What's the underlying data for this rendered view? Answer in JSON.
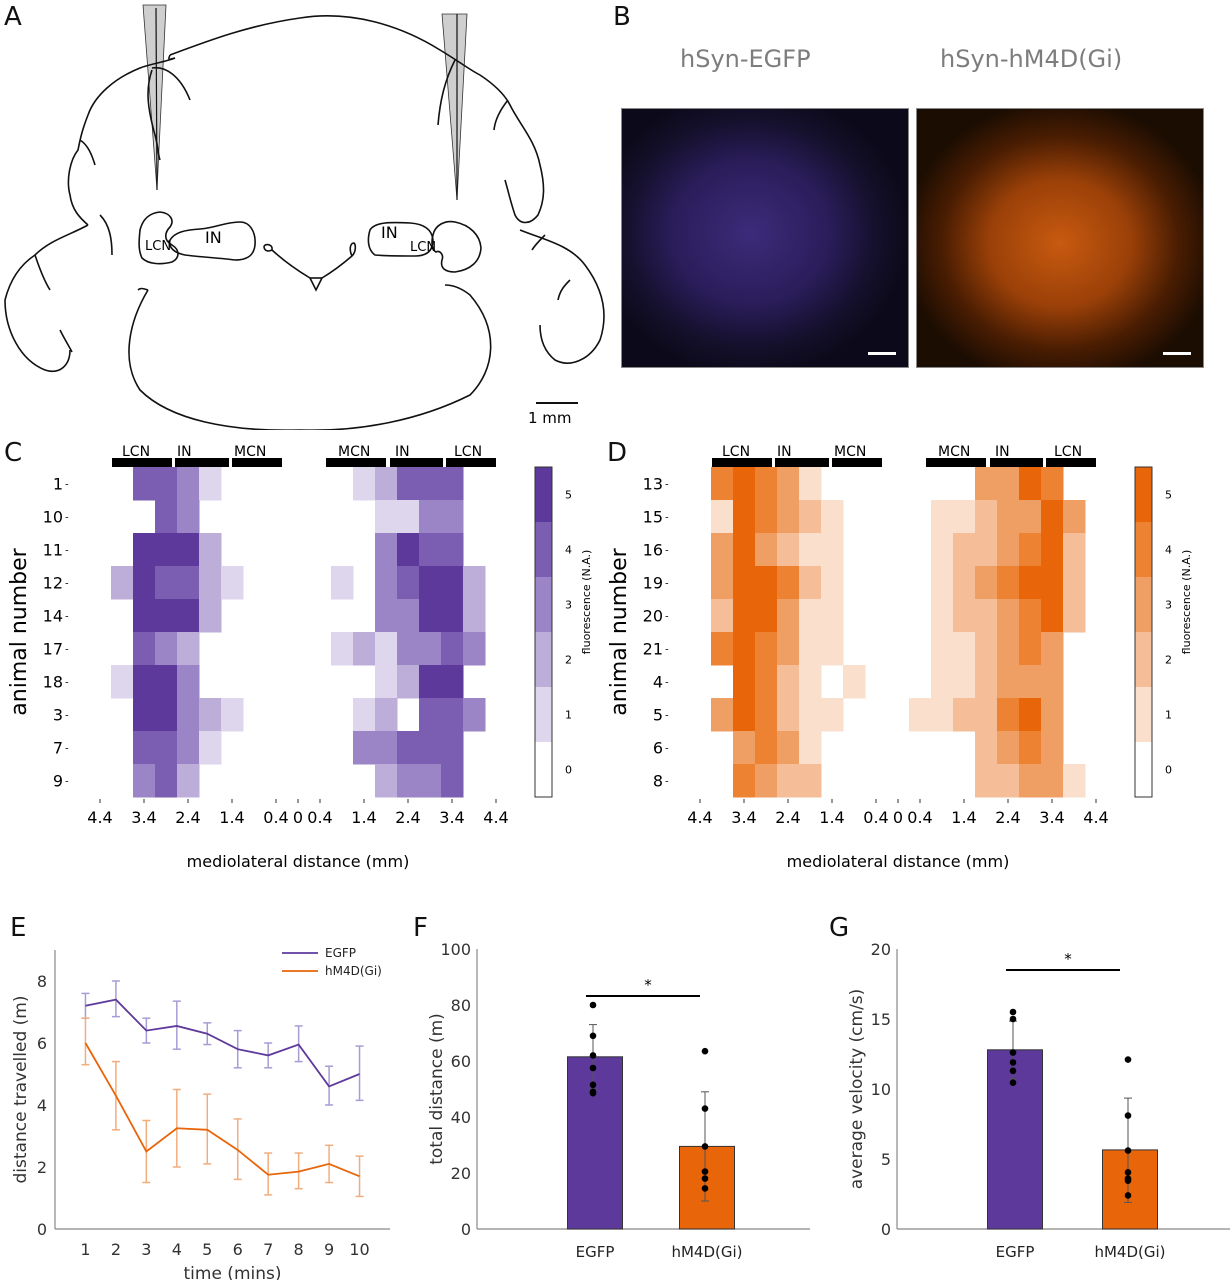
{
  "panels": {
    "A": {
      "label": "A",
      "annotations": {
        "left_lcn": "LCN",
        "left_in": "IN",
        "right_in": "IN",
        "right_lcn": "LCN"
      },
      "scale_bar": "1 mm"
    },
    "B": {
      "label": "B",
      "images": [
        {
          "title": "hSyn-EGFP",
          "tint": "#5b3fd1"
        },
        {
          "title": "hSyn-hM4D(Gi)",
          "tint": "#f06a0f"
        }
      ]
    },
    "C": {
      "label": "C"
    },
    "D": {
      "label": "D"
    },
    "E": {
      "label": "E"
    },
    "F": {
      "label": "F"
    },
    "G": {
      "label": "G"
    }
  },
  "colors": {
    "egfp": "#5e399c",
    "hm4d": "#e8650a"
  },
  "chart_data": [
    {
      "id": "C",
      "type": "heatmap",
      "title": "",
      "ylabel": "animal number",
      "xlabel": "mediolateral distance (mm)",
      "colorbar_label": "fluorescence (N.A.)",
      "colorbar_ticks": [
        "0",
        "1",
        "2",
        "3",
        "4",
        "5"
      ],
      "colormap": "purple",
      "rows": [
        "1",
        "10",
        "11",
        "12",
        "14",
        "17",
        "18",
        "3",
        "7",
        "9"
      ],
      "left": {
        "nucleus_labels": [
          "LCN",
          "IN",
          "MCN"
        ],
        "x_ticks": [
          "4.4",
          "3.4",
          "2.4",
          "1.4",
          "0.4"
        ],
        "values": [
          [
            0,
            4,
            4,
            3,
            1,
            0,
            0
          ],
          [
            0,
            0,
            4,
            3,
            0,
            0,
            0
          ],
          [
            0,
            5,
            5,
            5,
            2,
            0,
            0
          ],
          [
            2,
            5,
            4,
            4,
            2,
            1,
            0
          ],
          [
            0,
            5,
            5,
            5,
            2,
            0,
            0
          ],
          [
            0,
            4,
            3,
            2,
            0,
            0,
            0
          ],
          [
            1,
            5,
            5,
            3,
            0,
            0,
            0
          ],
          [
            0,
            5,
            5,
            3,
            2,
            1,
            0
          ],
          [
            0,
            4,
            4,
            3,
            1,
            0,
            0
          ],
          [
            0,
            3,
            4,
            2,
            0,
            0,
            0
          ]
        ]
      },
      "right": {
        "nucleus_labels": [
          "MCN",
          "IN",
          "LCN"
        ],
        "x_ticks": [
          "0",
          "0.4",
          "1.4",
          "2.4",
          "3.4",
          "4.4"
        ],
        "values": [
          [
            0,
            1,
            2,
            4,
            4,
            4,
            0
          ],
          [
            0,
            0,
            1,
            1,
            3,
            3,
            0
          ],
          [
            0,
            0,
            3,
            5,
            4,
            4,
            0
          ],
          [
            1,
            0,
            3,
            4,
            5,
            5,
            2
          ],
          [
            0,
            0,
            3,
            3,
            5,
            5,
            2
          ],
          [
            1,
            2,
            1,
            3,
            3,
            4,
            3
          ],
          [
            0,
            0,
            1,
            2,
            5,
            5,
            0
          ],
          [
            0,
            1,
            2,
            0,
            4,
            4,
            3
          ],
          [
            0,
            3,
            3,
            4,
            4,
            4,
            0
          ],
          [
            0,
            0,
            2,
            3,
            3,
            4,
            0
          ]
        ]
      }
    },
    {
      "id": "D",
      "type": "heatmap",
      "title": "",
      "ylabel": "animal number",
      "xlabel": "mediolateral distance (mm)",
      "colorbar_label": "fluorescence (N.A.)",
      "colorbar_ticks": [
        "0",
        "1",
        "2",
        "3",
        "4",
        "5"
      ],
      "colormap": "orange",
      "rows": [
        "13",
        "15",
        "16",
        "19",
        "20",
        "21",
        "4",
        "5",
        "6",
        "8"
      ],
      "left": {
        "nucleus_labels": [
          "LCN",
          "IN",
          "MCN"
        ],
        "x_ticks": [
          "4.4",
          "3.4",
          "2.4",
          "1.4",
          "0.4"
        ],
        "values": [
          [
            4,
            5,
            4,
            3,
            1,
            0,
            0
          ],
          [
            1,
            5,
            4,
            3,
            2,
            1,
            0
          ],
          [
            3,
            5,
            3,
            2,
            1,
            1,
            0
          ],
          [
            3,
            5,
            5,
            4,
            2,
            1,
            0
          ],
          [
            2,
            5,
            5,
            3,
            1,
            1,
            0
          ],
          [
            4,
            5,
            4,
            3,
            1,
            1,
            0
          ],
          [
            0,
            5,
            4,
            2,
            1,
            0,
            1
          ],
          [
            3,
            5,
            4,
            2,
            1,
            1,
            0
          ],
          [
            0,
            3,
            4,
            3,
            1,
            0,
            0
          ],
          [
            0,
            4,
            3,
            2,
            2,
            0,
            0
          ]
        ]
      },
      "right": {
        "nucleus_labels": [
          "MCN",
          "IN",
          "LCN"
        ],
        "x_ticks": [
          "0",
          "0.4",
          "1.4",
          "2.4",
          "3.4",
          "4.4"
        ],
        "values": [
          [
            0,
            0,
            0,
            3,
            3,
            5,
            4,
            0
          ],
          [
            0,
            1,
            1,
            2,
            3,
            3,
            5,
            3
          ],
          [
            0,
            1,
            2,
            2,
            3,
            4,
            5,
            2
          ],
          [
            0,
            1,
            2,
            3,
            4,
            5,
            5,
            2
          ],
          [
            0,
            1,
            2,
            2,
            3,
            4,
            5,
            2
          ],
          [
            0,
            1,
            1,
            2,
            3,
            4,
            3,
            0
          ],
          [
            0,
            1,
            1,
            2,
            3,
            3,
            3,
            0
          ],
          [
            1,
            1,
            2,
            2,
            4,
            5,
            3,
            0
          ],
          [
            0,
            0,
            0,
            2,
            3,
            4,
            3,
            0
          ],
          [
            0,
            0,
            0,
            2,
            2,
            3,
            3,
            1
          ]
        ]
      }
    },
    {
      "id": "E",
      "type": "line",
      "title": "",
      "xlabel": "time (mins)",
      "ylabel": "distance travelled (m)",
      "x": [
        1,
        2,
        3,
        4,
        5,
        6,
        7,
        8,
        9,
        10
      ],
      "xlim": [
        0,
        11
      ],
      "ylim": [
        0,
        9
      ],
      "y_ticks": [
        0,
        2,
        4,
        6,
        8
      ],
      "legend_position": "top-right",
      "series": [
        {
          "name": "EGFP",
          "values": [
            7.2,
            7.4,
            6.4,
            6.55,
            6.3,
            5.8,
            5.6,
            5.95,
            4.6,
            5.0
          ],
          "err_low": [
            6.8,
            6.85,
            6.0,
            5.8,
            5.95,
            5.2,
            5.2,
            5.4,
            4.0,
            4.15
          ],
          "err_high": [
            7.6,
            8.0,
            6.8,
            7.35,
            6.65,
            6.4,
            6.0,
            6.55,
            5.25,
            5.9
          ]
        },
        {
          "name": "hM4D(Gi)",
          "values": [
            6.0,
            4.3,
            2.5,
            3.25,
            3.2,
            2.55,
            1.75,
            1.85,
            2.1,
            1.7
          ],
          "err_low": [
            5.3,
            3.2,
            1.5,
            2.0,
            2.1,
            1.6,
            1.1,
            1.3,
            1.5,
            1.05
          ],
          "err_high": [
            6.8,
            5.4,
            3.5,
            4.5,
            4.35,
            3.55,
            2.45,
            2.45,
            2.7,
            2.35
          ]
        }
      ]
    },
    {
      "id": "F",
      "type": "bar",
      "title": "",
      "xlabel": "",
      "ylabel": "total distance (m)",
      "categories": [
        "EGFP",
        "hM4D(Gi)"
      ],
      "values": [
        61.5,
        29.5
      ],
      "err_low": [
        50,
        10
      ],
      "err_high": [
        73,
        49
      ],
      "points": [
        [
          80,
          69,
          62,
          57.5,
          51.5,
          49,
          48.5
        ],
        [
          63.5,
          43,
          29.5,
          20.5,
          18,
          14.5
        ]
      ],
      "ylim": [
        0,
        100
      ],
      "y_ticks": [
        "0",
        "20",
        "40",
        "60",
        "80",
        "100"
      ],
      "significance": "*"
    },
    {
      "id": "G",
      "type": "bar",
      "title": "",
      "xlabel": "",
      "ylabel": "average velocity (cm/s)",
      "categories": [
        "EGFP",
        "hM4D(Gi)"
      ],
      "values": [
        12.8,
        5.65
      ],
      "err_low": [
        10.7,
        1.9
      ],
      "err_high": [
        14.85,
        9.35
      ],
      "points": [
        [
          15.5,
          15.0,
          12.6,
          11.9,
          11.3,
          10.45
        ],
        [
          12.1,
          8.1,
          5.6,
          4.05,
          3.6,
          3.45,
          2.4
        ]
      ],
      "ylim": [
        0,
        20
      ],
      "y_ticks": [
        "0",
        "5",
        "10",
        "15",
        "20"
      ],
      "significance": "*"
    }
  ]
}
